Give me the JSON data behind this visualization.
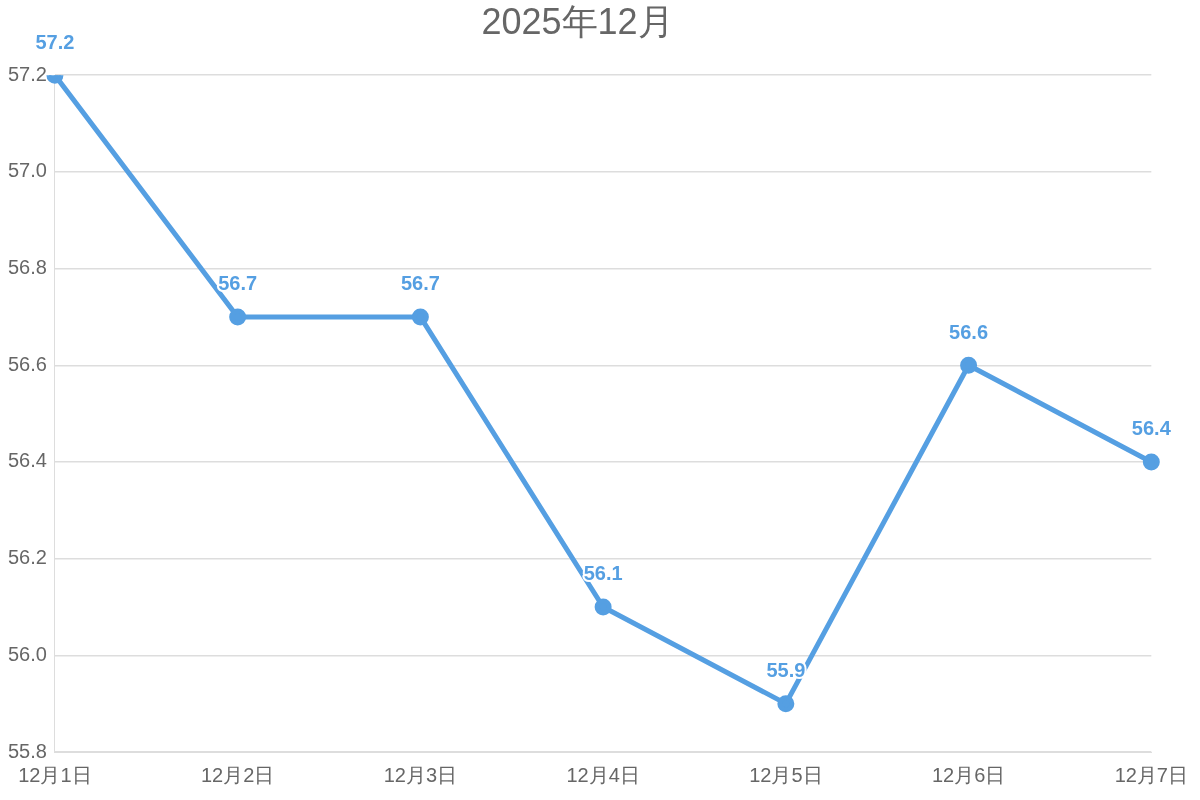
{
  "chart_data": {
    "type": "line",
    "title": "2025年12月",
    "categories": [
      "12月1日",
      "12月2日",
      "12月3日",
      "12月4日",
      "12月5日",
      "12月6日",
      "12月7日"
    ],
    "series": [
      {
        "color": "#559fe2",
        "values": [
          57.2,
          56.7,
          56.7,
          56.1,
          55.9,
          56.6,
          56.4
        ]
      }
    ],
    "ylim": [
      55.8,
      57.2
    ],
    "yticks": [
      55.8,
      {
        "value": 56,
        "label": "56.0"
      },
      56.2,
      56.4,
      56.6,
      56.8,
      {
        "value": 57,
        "label": "57.0"
      },
      57.2
    ],
    "grid": "y",
    "legend": false,
    "marker": "circle",
    "line_style": "solid",
    "data_labels": true
  }
}
